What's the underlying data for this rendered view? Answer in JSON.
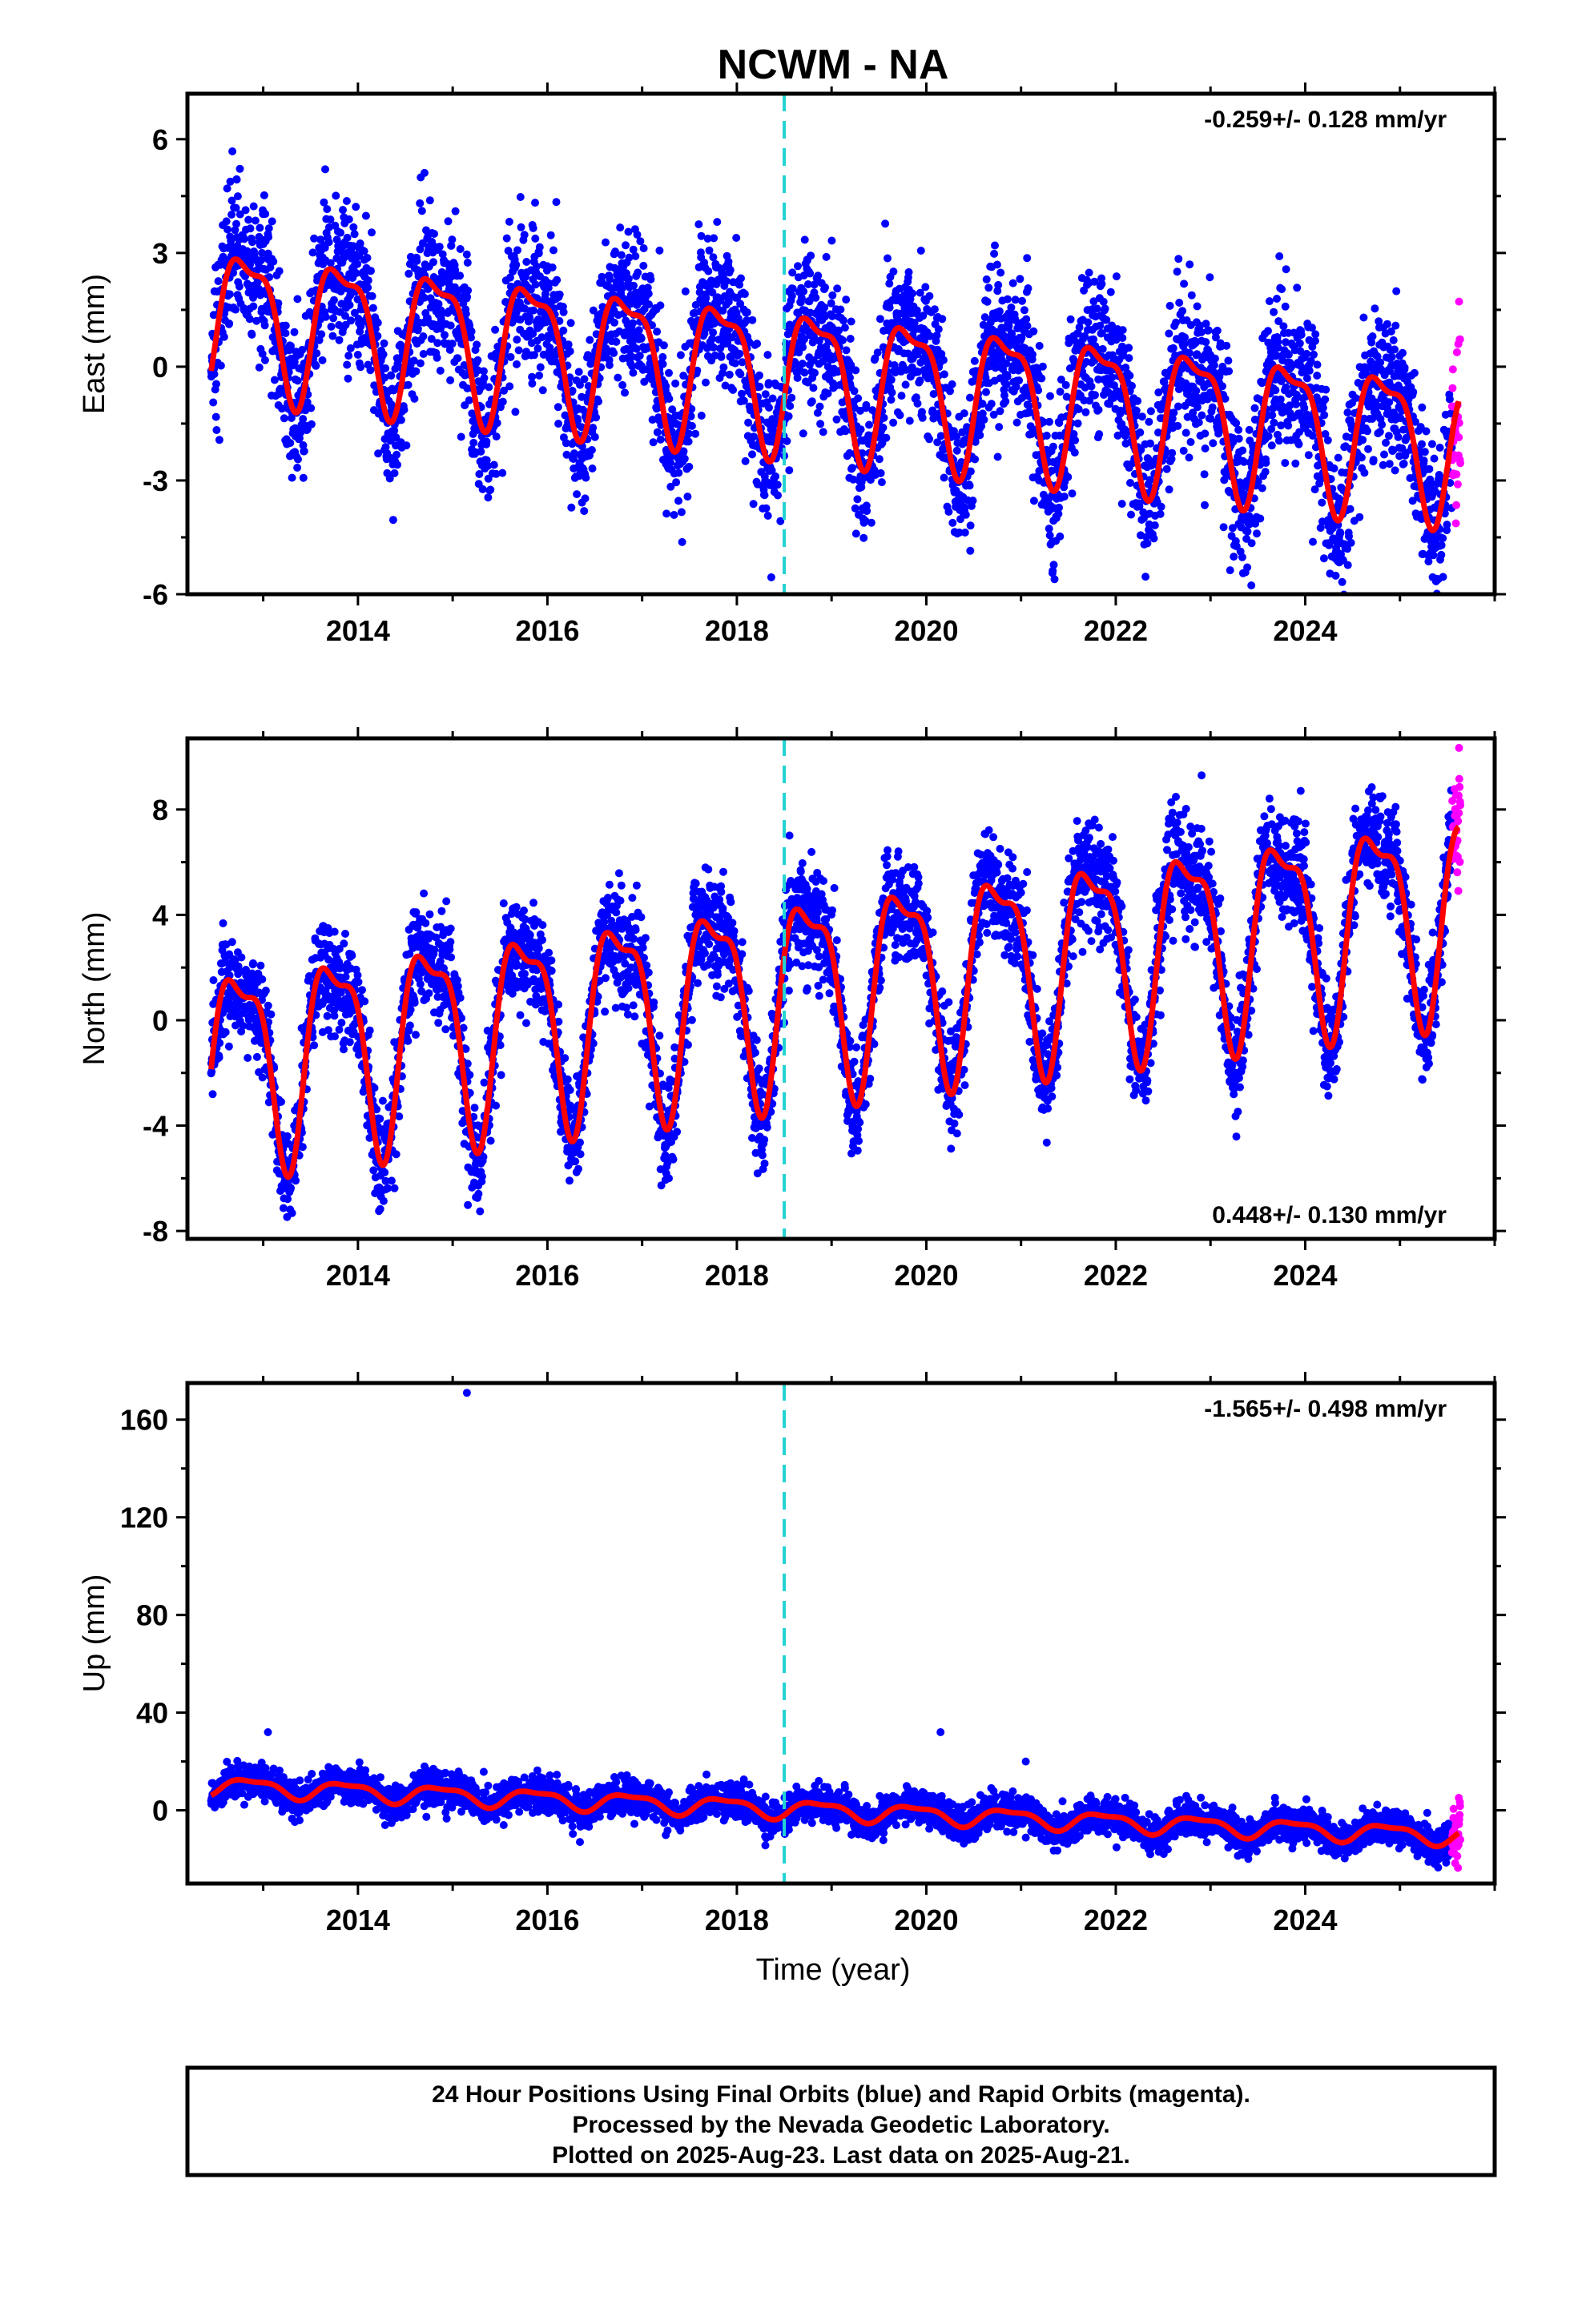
{
  "title": "NCWM - NA",
  "colors": {
    "final_points": "#0000ff",
    "rapid_points": "#ff00ff",
    "model_line": "#ff0000",
    "event_line": "#22d3d3"
  },
  "chart_data": [
    {
      "type": "scatter",
      "name": "east",
      "ylabel": "East (mm)",
      "xlabel": "",
      "xlim": [
        2012.2,
        2026.0
      ],
      "ylim": [
        -6.0,
        7.2
      ],
      "yticks": [
        -6,
        -3,
        0,
        3,
        6
      ],
      "xticks": [
        2014,
        2016,
        2018,
        2020,
        2022,
        2024
      ],
      "rate_label": "-0.259+/- 0.128 mm/yr",
      "rate_position": "top-right",
      "event_line_x": 2018.5,
      "model": {
        "offset": 1.5,
        "trend": -0.259,
        "amplitude": 1.8,
        "phase": 0.58,
        "noise": 1.0
      }
    },
    {
      "type": "scatter",
      "name": "north",
      "ylabel": "North (mm)",
      "xlabel": "",
      "xlim": [
        2012.2,
        2026.0
      ],
      "ylim": [
        -8.3,
        10.7
      ],
      "yticks": [
        -8,
        -4,
        0,
        4,
        8
      ],
      "xticks": [
        2014,
        2016,
        2018,
        2020,
        2022,
        2024
      ],
      "rate_label": "0.448+/- 0.130 mm/yr",
      "rate_position": "bottom-right",
      "event_line_x": 2018.5,
      "model": {
        "offset": -1.6,
        "trend": 0.448,
        "amplitude": 3.6,
        "phase": 0.5,
        "noise": 1.0
      }
    },
    {
      "type": "scatter",
      "name": "up",
      "ylabel": "Up (mm)",
      "xlabel": "Time (year)",
      "xlim": [
        2012.2,
        2026.0
      ],
      "ylim": [
        -30,
        175
      ],
      "yticks": [
        0,
        40,
        80,
        120,
        160
      ],
      "xticks": [
        2014,
        2016,
        2018,
        2020,
        2022,
        2024
      ],
      "rate_label": "-1.565+/- 0.498 mm/yr",
      "rate_position": "top-right",
      "event_line_x": 2018.5,
      "outliers": [
        [
          2015.15,
          171
        ],
        [
          2013.05,
          32
        ],
        [
          2020.15,
          32
        ],
        [
          2021.05,
          20
        ]
      ],
      "model": {
        "offset": 10.5,
        "trend": -1.565,
        "amplitude": 3.5,
        "phase": 0.62,
        "noise": 3.5
      }
    }
  ],
  "footer": {
    "line1": "24 Hour Positions Using Final Orbits (blue) and Rapid Orbits (magenta).",
    "line2": "Processed by the Nevada Geodetic Laboratory.",
    "line3": "Plotted on 2025-Aug-23. Last data on 2025-Aug-21."
  }
}
